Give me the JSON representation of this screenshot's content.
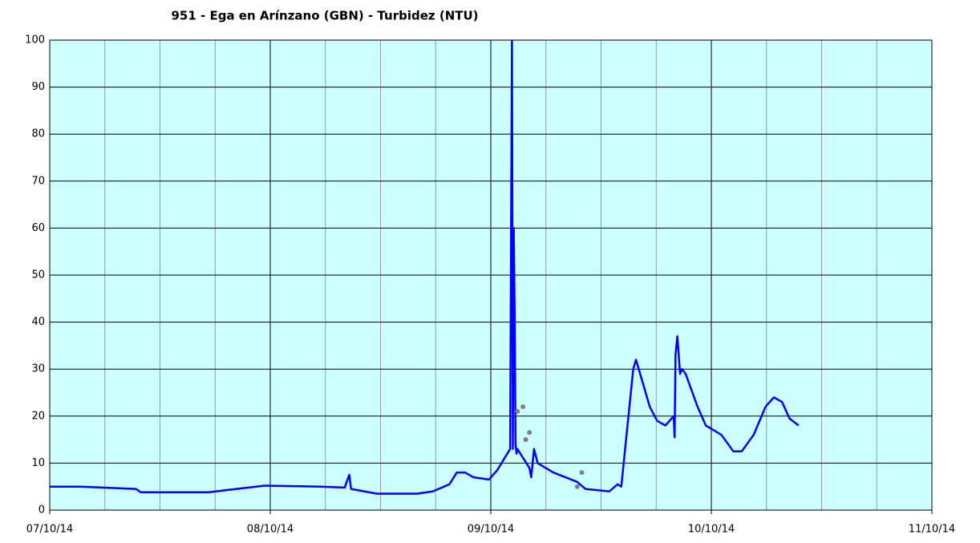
{
  "chart_data": {
    "type": "line",
    "title": "951 - Ega en Arínzano (GBN) - Turbidez (NTU)",
    "xlim": [
      0,
      96
    ],
    "xticks": [
      {
        "value": 0,
        "label": "07/10/14"
      },
      {
        "value": 24,
        "label": "08/10/14"
      },
      {
        "value": 48,
        "label": "09/10/14"
      },
      {
        "value": 72,
        "label": "10/10/14"
      },
      {
        "value": 96,
        "label": "11/10/14"
      }
    ],
    "xminor": [
      6,
      12,
      18,
      30,
      36,
      42,
      54,
      60,
      66,
      78,
      84,
      90
    ],
    "ylim": [
      0,
      100
    ],
    "yticks": [
      0,
      10,
      20,
      30,
      40,
      50,
      60,
      70,
      80,
      90,
      100
    ],
    "grid": true,
    "background": "#ccffff",
    "series": [
      {
        "color": "#0000ff",
        "marker": "line",
        "x": [
          0,
          3.3,
          9.4,
          9.9,
          17.3,
          19,
          23.4,
          29.5,
          32.1,
          32.6,
          32.8,
          35.6,
          40,
          41.7,
          43.5,
          44.3,
          45.2,
          46.1,
          47.8,
          48.7,
          50.1,
          50.3,
          50.4,
          50.5,
          50.6,
          50.7,
          50.8,
          50.9,
          52.2,
          52.4,
          52.7,
          53.1,
          54.8,
          57.4,
          58.3,
          60.9,
          61.8,
          62.2,
          63.5,
          63.8,
          64.4,
          65.3,
          66.1,
          67,
          67.9,
          68,
          68.1,
          68.3,
          68.6,
          68.8,
          69.2,
          70.5,
          71.4,
          73.1,
          74.4,
          75.3,
          76.6,
          77.9,
          78.8,
          79.7,
          80.5,
          81.5
        ],
        "values": [
          5,
          5,
          4.5,
          3.8,
          3.8,
          4.2,
          5.2,
          5,
          4.8,
          7.5,
          4.5,
          3.5,
          3.5,
          4,
          5.5,
          8,
          8,
          7,
          6.5,
          8.5,
          13,
          101,
          13,
          60,
          41,
          14,
          12,
          13,
          9,
          7,
          13,
          10,
          8,
          6,
          4.5,
          4,
          5.5,
          5,
          30,
          32,
          28,
          22,
          19,
          18,
          20,
          15.5,
          33,
          37,
          29,
          30,
          29,
          22,
          18,
          16,
          12.5,
          12.5,
          16,
          22,
          24,
          23,
          19.5,
          18
        ]
      },
      {
        "color": "#808080",
        "marker": "dot",
        "x": [
          50.9,
          51.5,
          51.8,
          52.2,
          57.4,
          57.9
        ],
        "values": [
          21,
          22,
          15,
          16.5,
          5,
          8
        ]
      }
    ]
  }
}
